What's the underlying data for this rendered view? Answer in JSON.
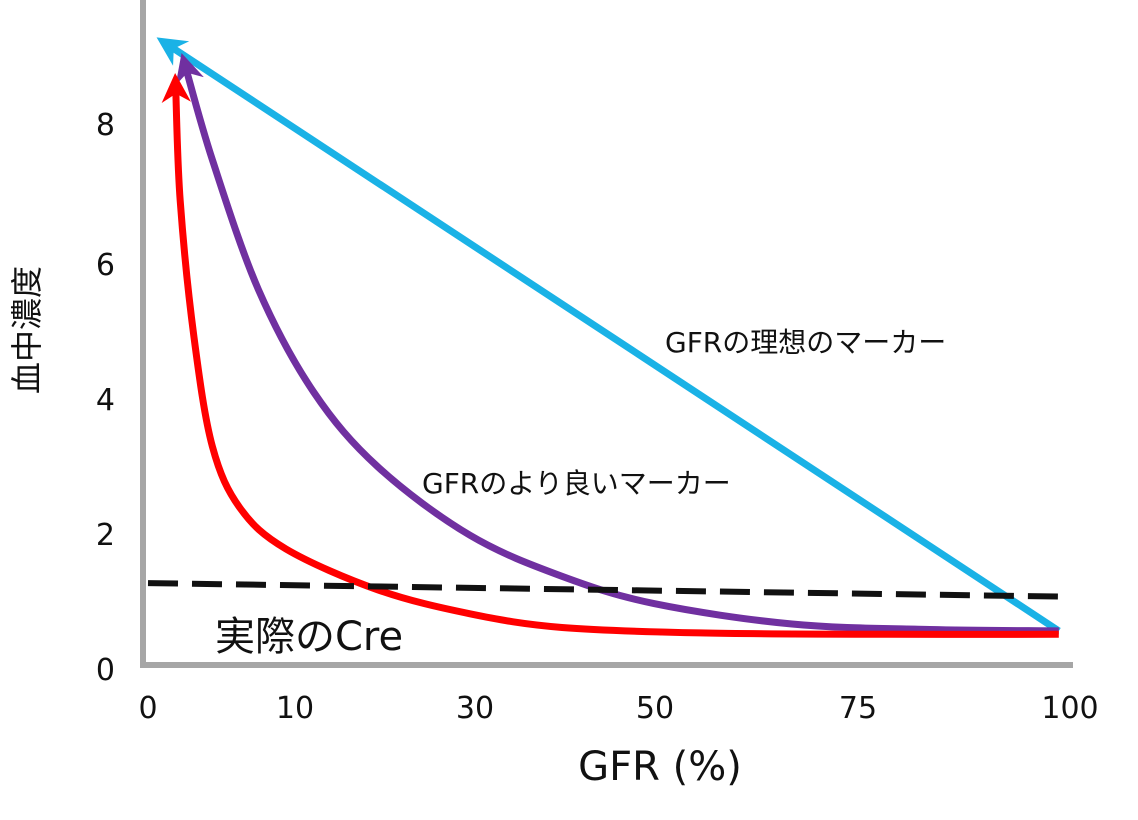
{
  "chart_data": {
    "type": "line",
    "title": "",
    "xlabel": "GFR (%)",
    "ylabel": "血中濃度",
    "xlim": [
      0,
      100
    ],
    "ylim": [
      0,
      9.2
    ],
    "x_ticks": [
      "0",
      "10",
      "30",
      "50",
      "75",
      "100"
    ],
    "y_ticks": [
      "0",
      "2",
      "4",
      "6",
      "8"
    ],
    "grid": false,
    "series": [
      {
        "name": "GFRの理想のマーカー",
        "color": "#1ab2e6",
        "arrow": "toward-low-gfr",
        "points": [
          [
            99,
            0.5
          ],
          [
            2,
            9.1
          ]
        ]
      },
      {
        "name": "GFRのより良いマーカー",
        "color": "#7030a0",
        "arrow": "toward-low-gfr",
        "points": [
          [
            99,
            0.5
          ],
          [
            85,
            0.52
          ],
          [
            70,
            0.6
          ],
          [
            55,
            0.9
          ],
          [
            45,
            1.3
          ],
          [
            35,
            1.9
          ],
          [
            25,
            2.9
          ],
          [
            18,
            4.0
          ],
          [
            12,
            5.5
          ],
          [
            7,
            7.4
          ],
          [
            4,
            8.8
          ]
        ]
      },
      {
        "name": "実際のCre",
        "color": "#ff0000",
        "arrow": "toward-low-gfr",
        "points": [
          [
            99,
            0.45
          ],
          [
            80,
            0.45
          ],
          [
            60,
            0.47
          ],
          [
            45,
            0.55
          ],
          [
            35,
            0.75
          ],
          [
            25,
            1.1
          ],
          [
            15,
            1.7
          ],
          [
            10,
            2.3
          ],
          [
            7,
            3.2
          ],
          [
            5,
            4.8
          ],
          [
            3.5,
            6.8
          ],
          [
            3,
            8.5
          ]
        ]
      },
      {
        "name": "",
        "color": "#111111",
        "style": "dashed",
        "points": [
          [
            0,
            1.2
          ],
          [
            100,
            1.0
          ]
        ]
      }
    ],
    "annotations": [
      {
        "text": "GFRの理想のマーカー",
        "x": 77,
        "y": 4.9,
        "size": "normal"
      },
      {
        "text": "GFRのより良いマーカー",
        "x": 52,
        "y": 2.8,
        "size": "normal"
      },
      {
        "text": "実際のCre",
        "x": 12,
        "y": 0.45,
        "size": "large"
      }
    ]
  }
}
